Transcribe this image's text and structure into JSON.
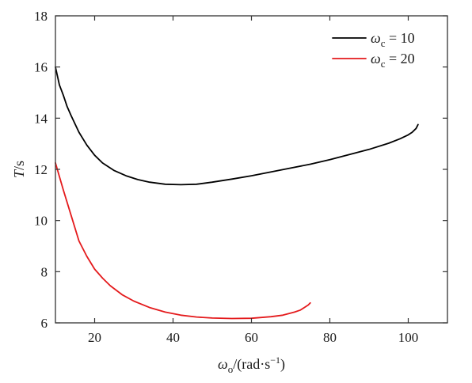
{
  "chart_data": {
    "type": "line",
    "xlabel": "ω_o/(rad·s⁻¹)",
    "xlabel_parts": {
      "omega": "ω",
      "sub": "o",
      "unit": "/(rad·s",
      "sup": "−1",
      "close": ")"
    },
    "ylabel": "T/s",
    "ylabel_parts": {
      "var": "T",
      "unit": "/s"
    },
    "xlim": [
      10,
      110
    ],
    "ylim": [
      6,
      18
    ],
    "xticks": [
      20,
      40,
      60,
      80,
      100
    ],
    "yticks": [
      6,
      8,
      10,
      12,
      14,
      16,
      18
    ],
    "grid": false,
    "legend_position": "top-right",
    "series": [
      {
        "name": "ω_c = 10",
        "legend": {
          "omega": "ω",
          "sub": "c",
          "rest": " = 10"
        },
        "color": "#000000",
        "x": [
          10,
          11,
          12,
          13,
          14,
          16,
          18,
          20,
          22,
          25,
          28,
          31,
          34,
          38,
          42,
          46,
          50,
          55,
          60,
          65,
          70,
          75,
          80,
          85,
          90,
          95,
          98,
          100,
          101,
          102,
          102.5
        ],
        "y": [
          16.0,
          15.3,
          14.9,
          14.45,
          14.1,
          13.45,
          12.95,
          12.55,
          12.25,
          11.95,
          11.75,
          11.6,
          11.5,
          11.42,
          11.4,
          11.42,
          11.5,
          11.62,
          11.75,
          11.9,
          12.05,
          12.2,
          12.38,
          12.58,
          12.78,
          13.02,
          13.2,
          13.35,
          13.45,
          13.6,
          13.75
        ]
      },
      {
        "name": "ω_c = 20",
        "legend": {
          "omega": "ω",
          "sub": "c",
          "rest": " = 20"
        },
        "color": "#e41a1c",
        "x": [
          10,
          12,
          14,
          16,
          18,
          20,
          22,
          24,
          27,
          30,
          34,
          38,
          42,
          46,
          50,
          55,
          60,
          65,
          68,
          71,
          72.5,
          73.5,
          74.5,
          75
        ],
        "y": [
          12.25,
          11.2,
          10.2,
          9.2,
          8.6,
          8.1,
          7.75,
          7.45,
          7.1,
          6.85,
          6.6,
          6.42,
          6.3,
          6.23,
          6.19,
          6.17,
          6.18,
          6.24,
          6.3,
          6.42,
          6.5,
          6.6,
          6.7,
          6.78
        ]
      }
    ]
  }
}
